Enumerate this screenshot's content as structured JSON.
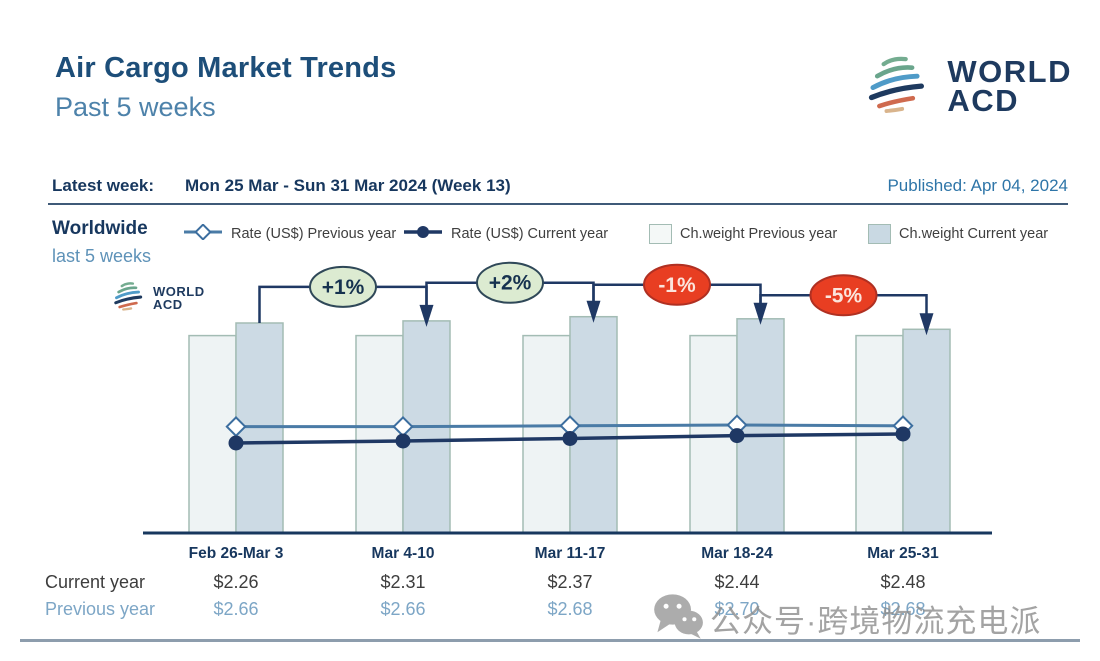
{
  "header": {
    "title": "Air Cargo Market Trends",
    "subtitle": "Past 5 weeks",
    "logo": {
      "line1": "WORLD",
      "line2": "ACD"
    },
    "latest_week_label": "Latest week:",
    "latest_week_value": "Mon 25 Mar - Sun 31 Mar 2024 (Week 13)",
    "published": "Published: Apr 04, 2024"
  },
  "legend": {
    "region_label": "Worldwide",
    "region_sublabel": "last 5 weeks",
    "items": [
      {
        "label": "Rate (US$) Previous year",
        "marker": "line-diamond"
      },
      {
        "label": "Rate (US$) Current year",
        "marker": "line-circle"
      },
      {
        "label": "Ch.weight Previous year",
        "marker": "square-light"
      },
      {
        "label": "Ch.weight Current year",
        "marker": "square-filled"
      }
    ]
  },
  "chart_data": {
    "type": "combo-bar-line",
    "categories": [
      "Feb 26-Mar 3",
      "Mar 4-10",
      "Mar 11-17",
      "Mar 18-24",
      "Mar 25-31"
    ],
    "series": [
      {
        "name": "Rate (US$) Previous year",
        "type": "line",
        "unit": "USD",
        "values": [
          2.66,
          2.66,
          2.68,
          2.7,
          2.68
        ]
      },
      {
        "name": "Rate (US$) Current year",
        "type": "line",
        "unit": "USD",
        "values": [
          2.26,
          2.31,
          2.37,
          2.44,
          2.48
        ]
      },
      {
        "name": "Ch.weight Previous year",
        "type": "bar",
        "values_index_estimated": [
          94,
          94,
          94,
          94,
          94
        ]
      },
      {
        "name": "Ch.weight Current year",
        "type": "bar",
        "values_index_estimated": [
          100,
          101,
          103,
          102,
          97
        ]
      }
    ],
    "wow_change_badges": [
      {
        "label": "+1%",
        "positive": true
      },
      {
        "label": "+2%",
        "positive": true
      },
      {
        "label": "-1%",
        "positive": false
      },
      {
        "label": "-5%",
        "positive": false
      }
    ],
    "inner_watermark": {
      "line1": "WORLD",
      "line2": "ACD"
    },
    "axis": {
      "gridlines": false,
      "y_axis_labels": false,
      "legend_position": "top"
    }
  },
  "table": {
    "rows": [
      {
        "label": "Current year",
        "values": [
          "$2.26",
          "$2.31",
          "$2.37",
          "$2.44",
          "$2.48"
        ]
      },
      {
        "label": "Previous year",
        "values": [
          "$2.66",
          "$2.66",
          "$2.68",
          "$2.70",
          "$2.68"
        ]
      }
    ]
  },
  "watermark": {
    "icon": "wechat-icon",
    "text": "公众号·跨境物流充电派"
  },
  "colors": {
    "navy": "#17375e",
    "title_blue": "#1d4e79",
    "subtitle_blue": "#4d82aa",
    "steel_line": "#4a7ba6",
    "navy_line": "#1f3864",
    "bar_previous": "#eef3f4",
    "bar_current": "#ccdae4",
    "bar_border": "#a3bcb4",
    "badge_green": "#dcebd1",
    "badge_red": "#e83e22"
  }
}
